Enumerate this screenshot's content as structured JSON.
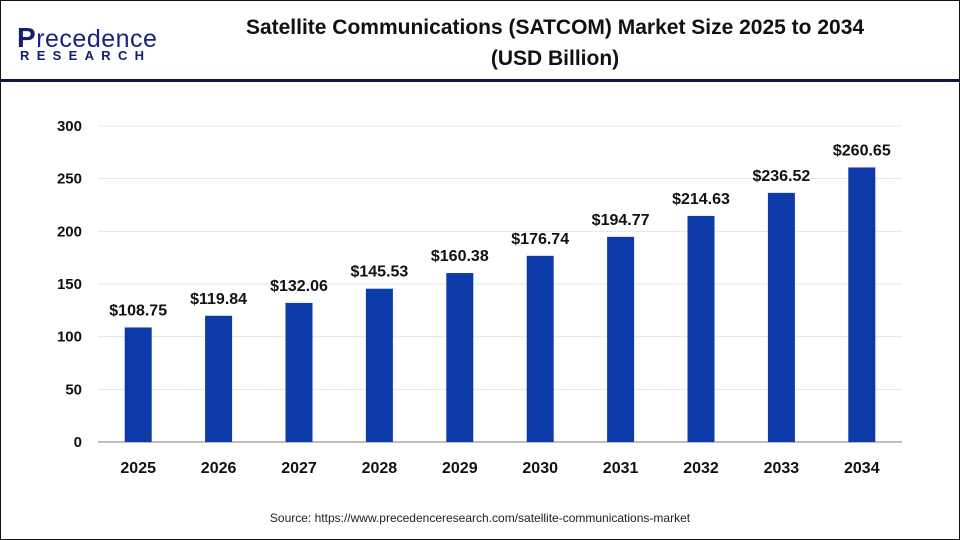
{
  "logo": {
    "main": "recedence",
    "initial": "P",
    "sub": "RESEARCH"
  },
  "header": {
    "title_line1": "Satellite Communications (SATCOM) Market Size 2025 to 2034",
    "title_line2": "(USD Billion)"
  },
  "source": "Source:  https://www.precedenceresearch.com/satellite-communications-market",
  "colors": {
    "bar": "#0d3aa9",
    "grid": "#e6e6e6",
    "axis": "#bfbfbf"
  },
  "chart_data": {
    "type": "bar",
    "title": "Satellite Communications (SATCOM) Market Size 2025 to 2034 (USD Billion)",
    "xlabel": "",
    "ylabel": "",
    "categories": [
      "2025",
      "2026",
      "2027",
      "2028",
      "2029",
      "2030",
      "2031",
      "2032",
      "2033",
      "2034"
    ],
    "values": [
      108.75,
      119.84,
      132.06,
      145.53,
      160.38,
      176.74,
      194.77,
      214.63,
      236.52,
      260.65
    ],
    "data_labels": [
      "$108.75",
      "$119.84",
      "$132.06",
      "$145.53",
      "$160.38",
      "$176.74",
      "$194.77",
      "$214.63",
      "$236.52",
      "$260.65"
    ],
    "ylim": [
      0,
      300
    ],
    "yticks": [
      0,
      50,
      100,
      150,
      200,
      250,
      300
    ],
    "grid": true,
    "legend": "none"
  }
}
